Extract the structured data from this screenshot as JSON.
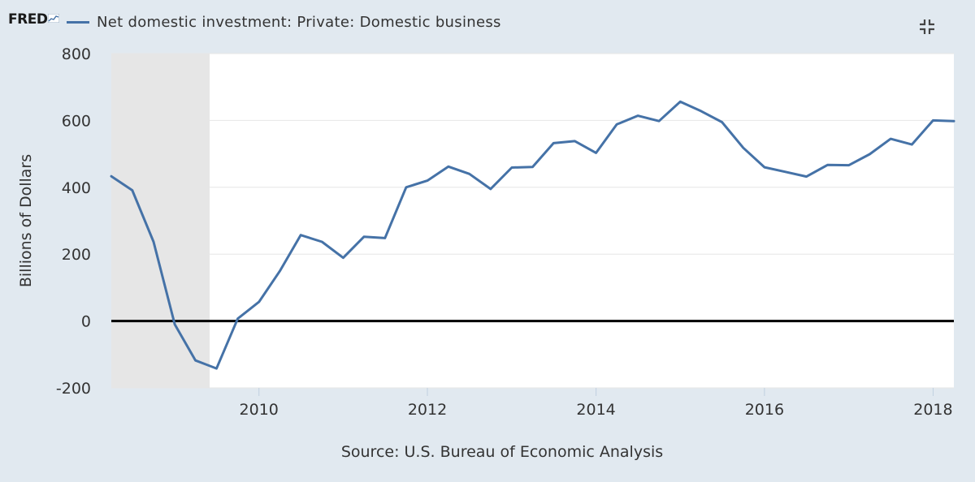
{
  "header": {
    "logo_text": "FRED",
    "legend_label": "Net domestic investment: Private: Domestic business",
    "collapse_icon": "collapse-icon"
  },
  "colors": {
    "background": "#e1e9f0",
    "plot_background": "#ffffff",
    "recession_band": "#e6e6e6",
    "series": "#4572a7",
    "zero_line": "#000000",
    "gridline": "#e6e6e6"
  },
  "source_text": "Source: U.S. Bureau of Economic Analysis",
  "chart_data": {
    "type": "line",
    "title": "",
    "xlabel": "",
    "ylabel": "Billions of Dollars",
    "ylim": [
      -200,
      800
    ],
    "xlim": [
      "2008-04-01",
      "2018-04-01"
    ],
    "y_ticks": [
      -200,
      0,
      200,
      400,
      600,
      800
    ],
    "y_tick_labels": [
      "-200",
      "0",
      "200",
      "400",
      "600",
      "800"
    ],
    "x_ticks": [
      "2010-01-01",
      "2012-01-01",
      "2014-01-01",
      "2016-01-01",
      "2018-01-01"
    ],
    "x_tick_labels": [
      "2010",
      "2012",
      "2014",
      "2016",
      "2018"
    ],
    "grid": "horizontal",
    "recession_shading": [
      {
        "start": "2008-04-01",
        "end": "2009-06-01"
      }
    ],
    "reference_line": {
      "y": 0
    },
    "legend_position": "top-left",
    "series": [
      {
        "name": "Net domestic investment: Private: Domestic business",
        "x": [
          "2008-04-01",
          "2008-07-01",
          "2008-10-01",
          "2009-01-01",
          "2009-04-01",
          "2009-07-01",
          "2009-10-01",
          "2010-01-01",
          "2010-04-01",
          "2010-07-01",
          "2010-10-01",
          "2011-01-01",
          "2011-04-01",
          "2011-07-01",
          "2011-10-01",
          "2012-01-01",
          "2012-04-01",
          "2012-07-01",
          "2012-10-01",
          "2013-01-01",
          "2013-04-01",
          "2013-07-01",
          "2013-10-01",
          "2014-01-01",
          "2014-04-01",
          "2014-07-01",
          "2014-10-01",
          "2015-01-01",
          "2015-04-01",
          "2015-07-01",
          "2015-10-01",
          "2016-01-01",
          "2016-04-01",
          "2016-07-01",
          "2016-10-01",
          "2017-01-01",
          "2017-04-01",
          "2017-07-01",
          "2017-10-01",
          "2018-01-01",
          "2018-04-01"
        ],
        "values": [
          433,
          391,
          237,
          -10,
          -118,
          -142,
          7,
          57,
          149,
          257,
          237,
          189,
          252,
          248,
          400,
          420,
          462,
          440,
          395,
          459,
          461,
          532,
          538,
          503,
          588,
          614,
          598,
          656,
          628,
          595,
          518,
          460,
          446,
          432,
          467,
          466,
          499,
          545,
          528,
          600,
          598
        ]
      }
    ]
  }
}
